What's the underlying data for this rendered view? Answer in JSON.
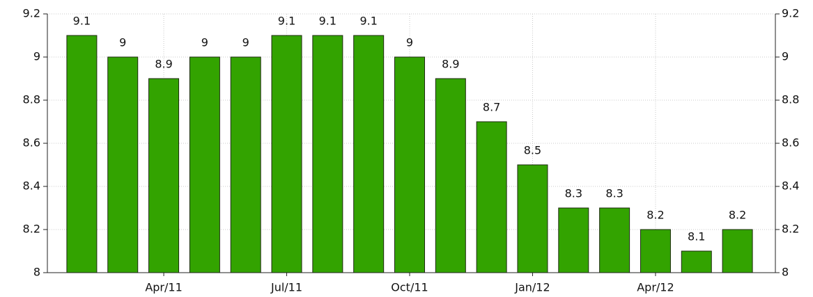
{
  "chart_data": {
    "type": "bar",
    "categories": [
      null,
      null,
      "Apr/11",
      null,
      null,
      "Jul/11",
      null,
      null,
      "Oct/11",
      null,
      null,
      "Jan/12",
      null,
      null,
      "Apr/12",
      null,
      null
    ],
    "values": [
      9.1,
      9,
      8.9,
      9,
      9,
      9.1,
      9.1,
      9.1,
      9,
      8.9,
      8.7,
      8.5,
      8.3,
      8.3,
      8.2,
      8.1,
      8.2
    ],
    "color": "#33a300",
    "ylim": [
      8,
      9.2
    ],
    "yticks": [
      8,
      8.2,
      8.4,
      8.6,
      8.8,
      9,
      9.2
    ],
    "y2lim": [
      8,
      9.2
    ],
    "y2ticks": [
      8,
      8.2,
      8.4,
      8.6,
      8.8,
      9,
      9.2
    ],
    "grid": true
  }
}
